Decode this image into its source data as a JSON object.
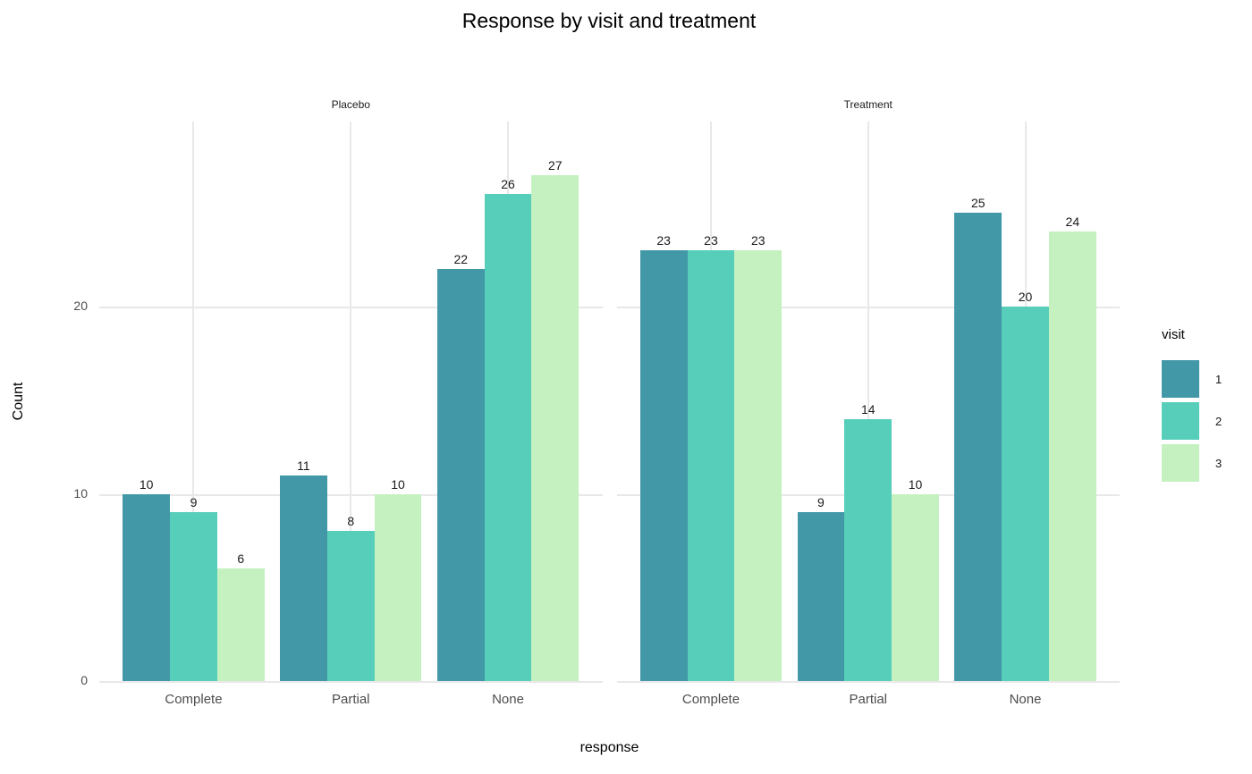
{
  "chart_data": {
    "type": "bar",
    "title": "Response by visit and treatment",
    "xlabel": "response",
    "ylabel": "Count",
    "legend_title": "visit",
    "legend_position": "right",
    "grid": true,
    "bar_value_labels": true,
    "categories": [
      "Complete",
      "Partial",
      "None"
    ],
    "yticks": [
      0,
      10,
      20
    ],
    "ylim": [
      0,
      29.9
    ],
    "series": [
      {
        "name": "1",
        "color": "#4398a8"
      },
      {
        "name": "2",
        "color": "#57ceb9"
      },
      {
        "name": "3",
        "color": "#c5f1c1"
      }
    ],
    "facets": [
      {
        "label": "Placebo",
        "values": [
          [
            10,
            9,
            6
          ],
          [
            11,
            8,
            10
          ],
          [
            22,
            26,
            27
          ]
        ]
      },
      {
        "label": "Treatment",
        "values": [
          [
            23,
            23,
            23
          ],
          [
            9,
            14,
            10
          ],
          [
            25,
            20,
            24
          ]
        ]
      }
    ],
    "colors": {
      "grid": "#e8e8e8",
      "axis_text": "#4d4d4d",
      "text": "#000000"
    }
  }
}
